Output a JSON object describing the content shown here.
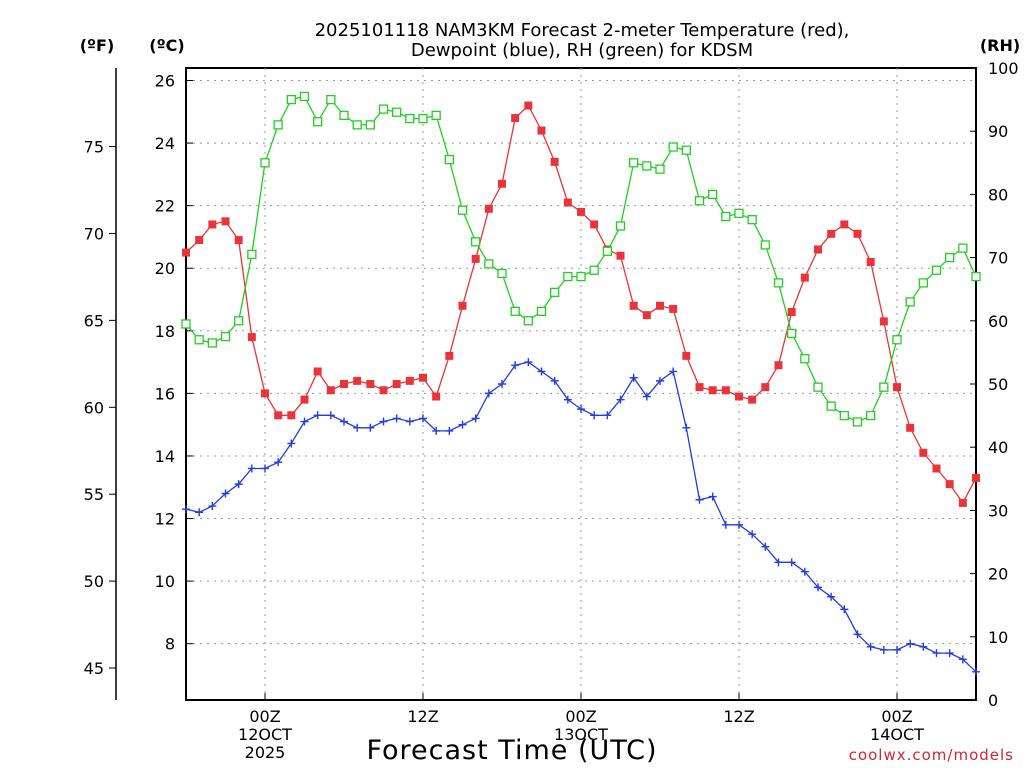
{
  "chart_data": {
    "type": "line",
    "title_line1": "2025101118 NAM3KM Forecast 2-meter Temperature (red),",
    "title_line2": "Dewpoint (blue), RH (green) for KDSM",
    "xlabel": "Forecast Time (UTC)",
    "credit": "coolwx.com/models",
    "axis_units": {
      "fahrenheit": "(ºF)",
      "celsius": "(ºC)",
      "rh": "(RH)"
    },
    "x_ticks": [
      {
        "hour": 6,
        "line1": "00Z",
        "line2": "12OCT",
        "line3": "2025"
      },
      {
        "hour": 18,
        "line1": "12Z",
        "line2": "",
        "line3": ""
      },
      {
        "hour": 30,
        "line1": "00Z",
        "line2": "13OCT",
        "line3": ""
      },
      {
        "hour": 42,
        "line1": "12Z",
        "line2": "",
        "line3": ""
      },
      {
        "hour": 54,
        "line1": "00Z",
        "line2": "14OCT",
        "line3": ""
      }
    ],
    "x_range_hours": [
      0,
      60
    ],
    "celsius_ticks": [
      "8",
      "10",
      "12",
      "14",
      "16",
      "18",
      "20",
      "22",
      "24",
      "26"
    ],
    "celsius_range": [
      6.2,
      26.4
    ],
    "fahrenheit_ticks": [
      "45",
      "50",
      "55",
      "60",
      "65",
      "70",
      "75"
    ],
    "rh_ticks": [
      "0",
      "10",
      "20",
      "30",
      "40",
      "50",
      "60",
      "70",
      "80",
      "90",
      "100"
    ],
    "rh_range": [
      0,
      100
    ],
    "series": [
      {
        "name": "Temperature",
        "unit": "degC",
        "color": "#e8343a",
        "marker": "filled-square",
        "values": [
          20.5,
          20.9,
          21.4,
          21.5,
          20.9,
          17.8,
          16.0,
          15.3,
          15.3,
          15.8,
          16.7,
          16.1,
          16.3,
          16.4,
          16.3,
          16.1,
          16.3,
          16.4,
          16.5,
          15.9,
          17.2,
          18.8,
          20.3,
          21.9,
          22.7,
          24.8,
          25.2,
          24.4,
          23.4,
          22.1,
          21.8,
          21.4,
          20.6,
          20.4,
          18.8,
          18.5,
          18.8,
          18.7,
          17.2,
          16.2,
          16.1,
          16.1,
          15.9,
          15.8,
          16.2,
          16.9,
          18.6,
          19.7,
          20.6,
          21.1,
          21.4,
          21.1,
          20.2,
          18.3,
          16.2,
          14.9,
          14.1,
          13.6,
          13.1,
          12.5,
          13.3
        ]
      },
      {
        "name": "Dewpoint",
        "unit": "degC",
        "color": "#1f3fe0",
        "marker": "plus",
        "values": [
          12.3,
          12.2,
          12.4,
          12.8,
          13.1,
          13.6,
          13.6,
          13.8,
          14.4,
          15.1,
          15.3,
          15.3,
          15.1,
          14.9,
          14.9,
          15.1,
          15.2,
          15.1,
          15.2,
          14.8,
          14.8,
          15.0,
          15.2,
          16.0,
          16.3,
          16.9,
          17.0,
          16.7,
          16.4,
          15.8,
          15.5,
          15.3,
          15.3,
          15.8,
          16.5,
          15.9,
          16.4,
          16.7,
          14.9,
          12.6,
          12.7,
          11.8,
          11.8,
          11.5,
          11.1,
          10.6,
          10.6,
          10.3,
          9.8,
          9.5,
          9.1,
          8.3,
          7.9,
          7.8,
          7.8,
          8.0,
          7.9,
          7.7,
          7.7,
          7.5,
          7.1
        ]
      },
      {
        "name": "RH",
        "unit": "percent",
        "color": "#22d022",
        "marker": "open-square",
        "values": [
          59.5,
          57.0,
          56.5,
          57.5,
          60.0,
          70.5,
          85.0,
          91.0,
          95.0,
          95.5,
          91.5,
          95.0,
          92.5,
          91.0,
          91.0,
          93.5,
          93.0,
          92.0,
          92.0,
          92.5,
          85.5,
          77.5,
          72.5,
          69.0,
          67.5,
          61.5,
          60.0,
          61.5,
          64.5,
          67.0,
          67.0,
          68.0,
          71.0,
          75.0,
          85.0,
          84.5,
          84.0,
          87.5,
          87.0,
          79.0,
          80.0,
          76.5,
          77.0,
          76.0,
          72.0,
          66.0,
          58.0,
          54.0,
          49.5,
          46.5,
          45.0,
          44.0,
          45.0,
          49.5,
          57.0,
          63.0,
          66.0,
          68.0,
          70.0,
          71.5,
          67.0
        ]
      }
    ]
  }
}
